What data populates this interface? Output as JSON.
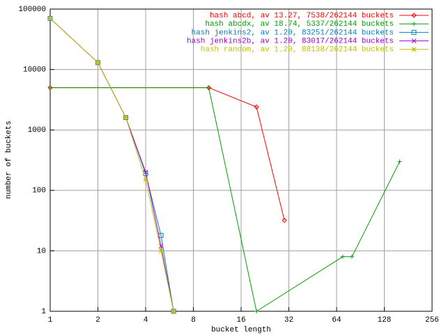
{
  "chart_data": {
    "type": "line",
    "xlabel": "bucket length",
    "ylabel": "number of buckets",
    "xscale": "log",
    "yscale": "log",
    "grid": true,
    "legend": "top-right",
    "xlim": [
      1,
      256
    ],
    "xticks": [
      1,
      2,
      4,
      8,
      16,
      32,
      64,
      128,
      256
    ],
    "ylim": [
      1,
      100000
    ],
    "yticks": [
      1,
      10,
      100,
      1000,
      10000,
      100000
    ],
    "series": [
      {
        "name": "hash abcd, av 13.27, 7538/262144 buckets",
        "color": "#ff0000",
        "marker": "diamond",
        "x": [
          1,
          10,
          20,
          30
        ],
        "values": [
          5000,
          5000,
          2400,
          32
        ]
      },
      {
        "name": "hash abcdx, av 18.74, 5337/262144 buckets",
        "color": "#00a000",
        "marker": "plus",
        "x": [
          1,
          10,
          20,
          70,
          80,
          160
        ],
        "values": [
          5000,
          5000,
          1,
          8,
          8,
          300
        ]
      },
      {
        "name": "hash jenkins2, av 1.20, 83251/262144 buckets",
        "color": "#0080c0",
        "marker": "square",
        "x": [
          1,
          2,
          3,
          4,
          5,
          6
        ],
        "values": [
          70000,
          13000,
          1600,
          190,
          18,
          1
        ]
      },
      {
        "name": "hash jenkins2b, av 1.20, 83017/262144 buckets",
        "color": "#a000d0",
        "marker": "cross",
        "x": [
          1,
          2,
          3,
          4,
          5,
          6
        ],
        "values": [
          70000,
          13000,
          1600,
          200,
          12,
          1
        ]
      },
      {
        "name": "hash random, av 1.20, 88138/262144 buckets",
        "color": "#c0c000",
        "marker": "star",
        "x": [
          1,
          2,
          3,
          4,
          5,
          6
        ],
        "values": [
          70000,
          13000,
          1600,
          150,
          10,
          1
        ]
      }
    ]
  }
}
